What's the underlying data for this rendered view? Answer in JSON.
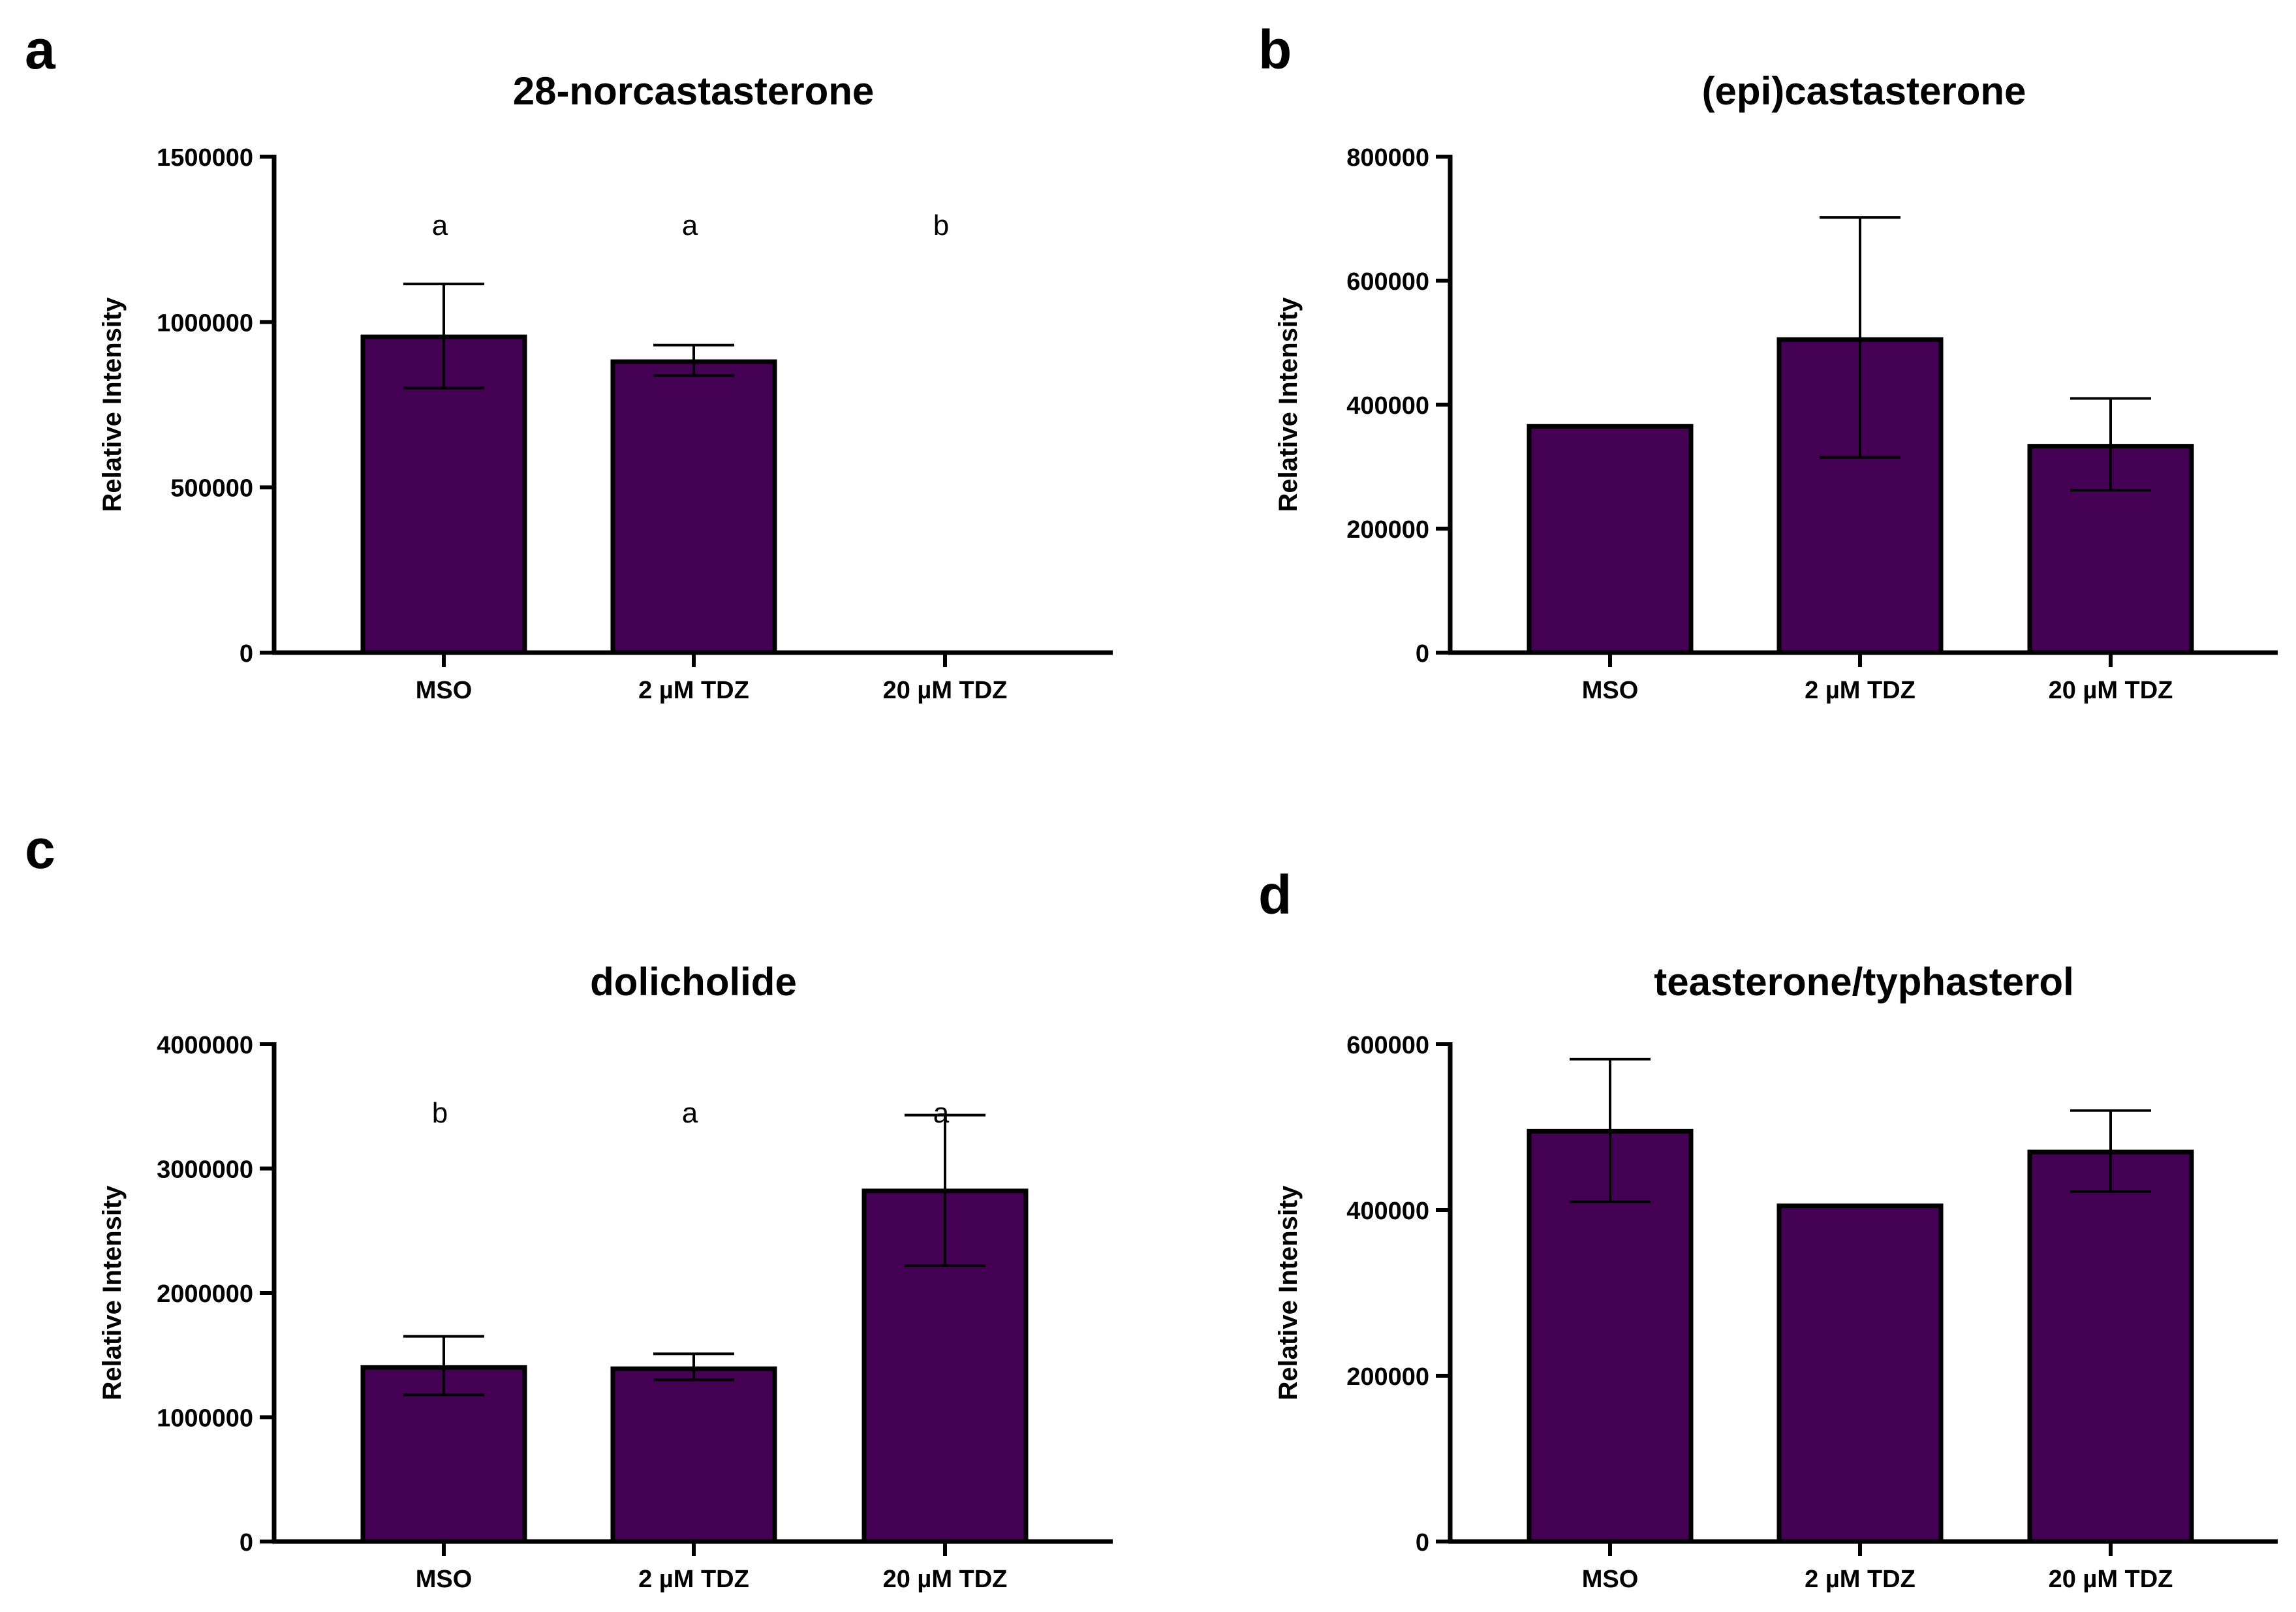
{
  "figure": {
    "bar_color": "#440154",
    "edge_color": "#000000"
  },
  "chart_data": [
    {
      "panel": "a",
      "type": "bar",
      "title": "28-norcastasterone",
      "xlabel": "",
      "ylabel": "Relative Intensity",
      "categories": [
        "MSO",
        "2 µM TDZ",
        "20 µM TDZ"
      ],
      "values": [
        955000,
        880000,
        0
      ],
      "error_low": [
        800000,
        838000,
        null
      ],
      "error_high": [
        1115000,
        930000,
        null
      ],
      "significance": [
        "a",
        "a",
        "b"
      ],
      "ylim": [
        0,
        1500000
      ],
      "yticks": [
        0,
        500000,
        1000000,
        1500000
      ],
      "ytick_labels": [
        "0",
        "500000",
        "1000000",
        "1500000"
      ]
    },
    {
      "panel": "b",
      "type": "bar",
      "title": "(epi)castasterone",
      "xlabel": "",
      "ylabel": "Relative Intensity",
      "categories": [
        "MSO",
        "2 µM TDZ",
        "20 µM TDZ"
      ],
      "values": [
        365000,
        505000,
        333000
      ],
      "error_low": [
        null,
        315000,
        262000
      ],
      "error_high": [
        null,
        702000,
        410000
      ],
      "significance": [
        "",
        "",
        ""
      ],
      "ylim": [
        0,
        800000
      ],
      "yticks": [
        0,
        200000,
        400000,
        600000,
        800000
      ],
      "ytick_labels": [
        "0",
        "200000",
        "400000",
        "600000",
        "800000"
      ]
    },
    {
      "panel": "c",
      "type": "bar",
      "title": "dolicholide",
      "xlabel": "",
      "ylabel": "Relative Intensity",
      "categories": [
        "MSO",
        "2 µM TDZ",
        "20 µM TDZ"
      ],
      "values": [
        1400000,
        1390000,
        2820000
      ],
      "error_low": [
        1180000,
        1300000,
        2220000
      ],
      "error_high": [
        1650000,
        1510000,
        3430000
      ],
      "significance": [
        "b",
        "a",
        "a"
      ],
      "ylim": [
        0,
        4000000
      ],
      "yticks": [
        0,
        1000000,
        2000000,
        3000000,
        4000000
      ],
      "ytick_labels": [
        "0",
        "1000000",
        "2000000",
        "3000000",
        "4000000"
      ]
    },
    {
      "panel": "d",
      "type": "bar",
      "title": "teasterone/typhasterol",
      "xlabel": "",
      "ylabel": "Relative Intensity",
      "categories": [
        "MSO",
        "2 µM TDZ",
        "20 µM TDZ"
      ],
      "values": [
        495000,
        405000,
        470000
      ],
      "error_low": [
        410000,
        null,
        422000
      ],
      "error_high": [
        582000,
        null,
        520000
      ],
      "significance": [
        "",
        "",
        ""
      ],
      "ylim": [
        0,
        600000
      ],
      "yticks": [
        0,
        200000,
        400000,
        600000
      ],
      "ytick_labels": [
        "0",
        "200000",
        "400000",
        "600000"
      ]
    }
  ]
}
